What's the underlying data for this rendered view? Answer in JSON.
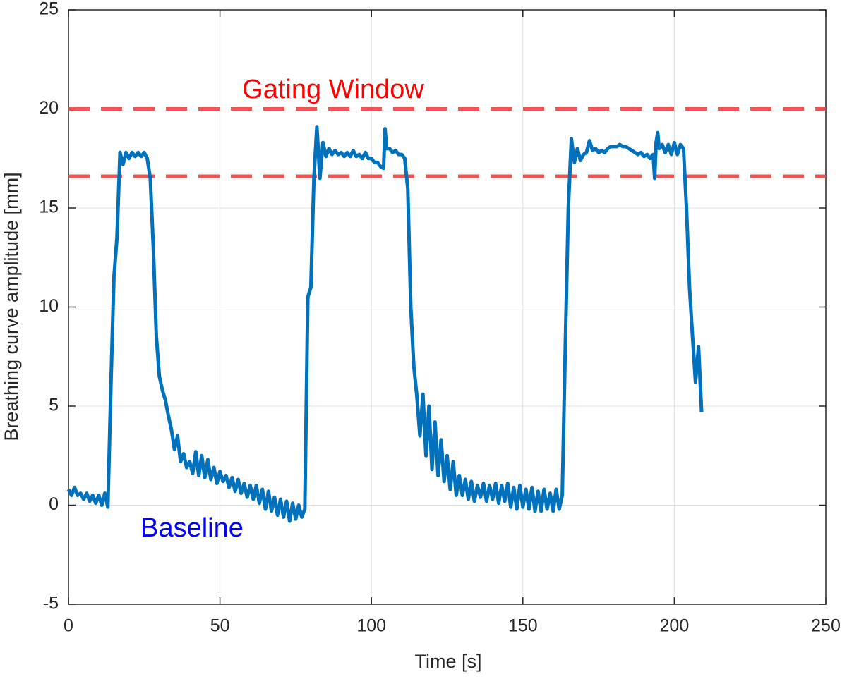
{
  "chart_data": {
    "type": "line",
    "xlabel": "Time [s]",
    "ylabel": "Breathing curve amplitude [mm]",
    "xlim": [
      0,
      250
    ],
    "ylim": [
      -5,
      25
    ],
    "xticks": [
      0,
      50,
      100,
      150,
      200,
      250
    ],
    "yticks": [
      -5,
      0,
      5,
      10,
      15,
      20,
      25
    ],
    "grid": true,
    "x": [
      0,
      1,
      2,
      3,
      4,
      5,
      6,
      7,
      8,
      9,
      10,
      11,
      12,
      13,
      14,
      15,
      16,
      17,
      18,
      19,
      20,
      21,
      22,
      23,
      24,
      25,
      26,
      27,
      28,
      29,
      30,
      31,
      32,
      33,
      34,
      35,
      36,
      37,
      38,
      39,
      40,
      41,
      42,
      43,
      44,
      45,
      46,
      47,
      48,
      49,
      50,
      51,
      52,
      53,
      54,
      55,
      56,
      57,
      58,
      59,
      60,
      61,
      62,
      63,
      64,
      65,
      66,
      67,
      68,
      69,
      70,
      71,
      72,
      73,
      74,
      75,
      76,
      77,
      78,
      79,
      80,
      81,
      82,
      83,
      84,
      85,
      86,
      87,
      88,
      89,
      90,
      91,
      92,
      93,
      94,
      95,
      96,
      97,
      98,
      99,
      100,
      101,
      102,
      103,
      104,
      104.5,
      105,
      106,
      107,
      108,
      109,
      110,
      111,
      112,
      113,
      114,
      115,
      116,
      117,
      118,
      119,
      120,
      121,
      122,
      123,
      124,
      125,
      126,
      127,
      128,
      129,
      130,
      131,
      132,
      133,
      134,
      135,
      136,
      137,
      138,
      139,
      140,
      141,
      142,
      143,
      144,
      145,
      146,
      147,
      148,
      149,
      150,
      151,
      152,
      153,
      154,
      155,
      156,
      157,
      158,
      159,
      160,
      161,
      162,
      163,
      164,
      165,
      166,
      167,
      168,
      169,
      170,
      171,
      172,
      173,
      174,
      175,
      176,
      177,
      178,
      179,
      180,
      181,
      182,
      183,
      184,
      185,
      186,
      187,
      188,
      189,
      190,
      191,
      192,
      193,
      193.5,
      194,
      194.5,
      195,
      196,
      197,
      198,
      199,
      200,
      201,
      202,
      203,
      204,
      205,
      206,
      207,
      208,
      209
    ],
    "series": [
      {
        "color": "#0072bd",
        "values": [
          0.8,
          0.5,
          0.9,
          0.5,
          0.6,
          0.3,
          0.6,
          0.2,
          0.5,
          0.1,
          0.5,
          0.0,
          0.6,
          -0.1,
          6,
          11.5,
          13.5,
          17.8,
          17.2,
          17.8,
          17.5,
          17.8,
          17.6,
          17.8,
          17.6,
          17.8,
          17.5,
          16.5,
          13,
          8.5,
          6.5,
          5.8,
          5.3,
          4.5,
          3.8,
          2.8,
          3.5,
          2.2,
          2.6,
          1.9,
          2.2,
          1.6,
          2.7,
          1.5,
          2.5,
          1.4,
          2.3,
          1.3,
          1.9,
          1.1,
          1.7,
          1.2,
          1.5,
          0.9,
          1.4,
          0.7,
          1.3,
          0.6,
          1.1,
          0.4,
          1.0,
          0.3,
          1.0,
          0.1,
          0.8,
          -0.2,
          0.7,
          -0.3,
          0.4,
          -0.5,
          0.3,
          -0.6,
          0.2,
          -0.8,
          0.1,
          -0.7,
          0.0,
          -0.6,
          -0.2,
          10.5,
          11,
          16.5,
          19.1,
          16.5,
          18.3,
          17.6,
          18.0,
          17.7,
          17.9,
          17.7,
          17.8,
          17.6,
          17.8,
          17.6,
          17.9,
          17.6,
          17.7,
          17.5,
          17.8,
          17.5,
          17.5,
          17.3,
          17.3,
          17.1,
          17.0,
          19.0,
          18.0,
          18.0,
          17.8,
          17.9,
          17.7,
          17.7,
          17.5,
          16,
          10,
          7,
          5.5,
          3.5,
          5.6,
          2.5,
          5,
          1.8,
          4.2,
          1.5,
          3.3,
          1.2,
          2.5,
          0.8,
          2.2,
          0.5,
          1.5,
          0.5,
          1.3,
          0.3,
          1.2,
          0.2,
          1.0,
          0.4,
          1.1,
          0.2,
          1.0,
          0.3,
          1.1,
          0.1,
          1.0,
          0.2,
          1.1,
          -0.1,
          0.9,
          -0.2,
          1.0,
          -0.1,
          0.8,
          -0.2,
          0.9,
          -0.3,
          0.7,
          -0.3,
          0.8,
          -0.2,
          0.6,
          -0.3,
          0.8,
          -0.2,
          0.5,
          8,
          15,
          18.5,
          17.3,
          18.0,
          17.4,
          17.7,
          17.8,
          18.4,
          17.9,
          18.0,
          17.8,
          17.9,
          17.8,
          18.0,
          18.1,
          18.1,
          18.1,
          18.2,
          18.1,
          18.1,
          18.0,
          17.9,
          17.8,
          17.7,
          17.8,
          17.6,
          17.7,
          17.5,
          17.7,
          16.5,
          18.3,
          18.8,
          18.0,
          18.2,
          17.8,
          18.2,
          17.7,
          18.3,
          17.7,
          18.2,
          18.0,
          15,
          11,
          8.5,
          6.2,
          8,
          4.7
        ]
      }
    ],
    "reference_lines": [
      {
        "value": 20,
        "color": "#f04040"
      },
      {
        "value": 16.6,
        "color": "#f04040"
      }
    ],
    "annotations": [
      {
        "text": "Gating Window",
        "color": "#ff0000"
      },
      {
        "text": "Baseline",
        "color": "#0000ff"
      }
    ]
  }
}
